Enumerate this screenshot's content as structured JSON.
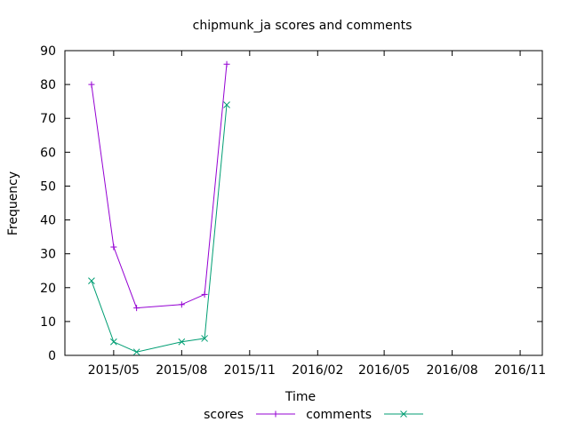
{
  "chart_data": {
    "type": "line",
    "title": "chipmunk_ja scores and comments",
    "xlabel": "Time",
    "ylabel": "Frequency",
    "xlim": [
      "2015-02-24",
      "2016-12-01"
    ],
    "ylim": [
      0,
      90
    ],
    "yticks": [
      0,
      10,
      20,
      30,
      40,
      50,
      60,
      70,
      80,
      90
    ],
    "xticks": [
      "2015/05",
      "2015/08",
      "2015/11",
      "2016/02",
      "2016/05",
      "2016/08",
      "2016/11"
    ],
    "xtick_dates": [
      "2015-05-01",
      "2015-08-01",
      "2015-11-01",
      "2016-02-01",
      "2016-05-01",
      "2016-08-01",
      "2016-11-01"
    ],
    "grid": false,
    "legend_position": "bottom-center",
    "series": [
      {
        "name": "scores",
        "color": "#9400d3",
        "marker": "plus",
        "x": [
          "2015-04-01",
          "2015-05-01",
          "2015-06-01",
          "2015-08-01",
          "2015-09-01",
          "2015-10-01"
        ],
        "values": [
          80,
          32,
          14,
          15,
          18,
          86
        ]
      },
      {
        "name": "comments",
        "color": "#009e73",
        "marker": "cross",
        "x": [
          "2015-04-01",
          "2015-05-01",
          "2015-06-01",
          "2015-08-01",
          "2015-09-01",
          "2015-10-01"
        ],
        "values": [
          22,
          4,
          1,
          4,
          5,
          74
        ]
      }
    ]
  }
}
